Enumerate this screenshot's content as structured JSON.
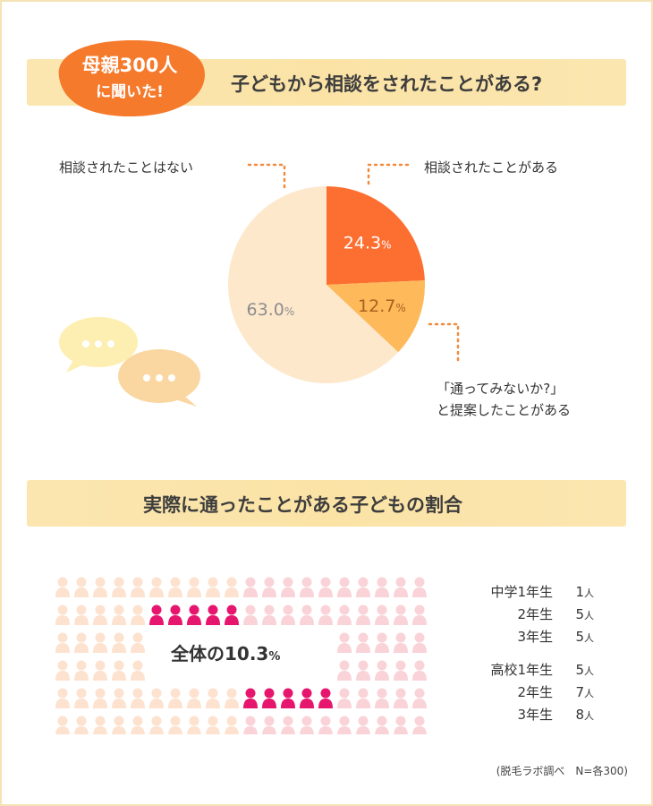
{
  "header": {
    "badge_line1": "母親300人",
    "badge_line2": "に聞いた!",
    "title": "子どもから相談をされたことがある?"
  },
  "chart_data": [
    {
      "type": "pie",
      "title": "子どもから相談をされたことがある?",
      "slices": [
        {
          "label": "相談されたことがある",
          "value": 24.3,
          "color": "#fd6f31",
          "text_color": "#ffffff"
        },
        {
          "label": "「通ってみないか?」と提案したことがある",
          "value": 12.7,
          "color": "#fdb95a",
          "text_color": "#a8621c"
        },
        {
          "label": "相談されたことはない",
          "value": 63.0,
          "color": "#fde8cc",
          "text_color": "#8d8d8d"
        }
      ],
      "unit": "%"
    },
    {
      "type": "table",
      "title": "実際に通ったことがある子どもの割合",
      "summary": "全体の10.3%",
      "total_value": 10.3,
      "rows": [
        {
          "school": "中学",
          "grade": "中学1年生",
          "count": 1
        },
        {
          "school": "中学",
          "grade": "2年生",
          "count": 5
        },
        {
          "school": "中学",
          "grade": "3年生",
          "count": 5
        },
        {
          "school": "高校",
          "grade": "高校1年生",
          "count": 5
        },
        {
          "school": "高校",
          "grade": "2年生",
          "count": 7
        },
        {
          "school": "高校",
          "grade": "3年生",
          "count": 8
        }
      ]
    }
  ],
  "pie_labels": {
    "none": "相談されたことはない",
    "yes": "相談されたことがある",
    "suggest_line1": "「通ってみないか?」",
    "suggest_line2": "と提案したことがある"
  },
  "section2": {
    "title": "実際に通ったことがある子どもの割合",
    "total_text": "全体の10.3",
    "total_unit": "%",
    "unit": "人"
  },
  "people_colors": {
    "highlight": "#e6166f",
    "left": "#fde2cf",
    "right": "#f9d3d8"
  },
  "source": "(脱毛ラボ調べ　N=各300)"
}
